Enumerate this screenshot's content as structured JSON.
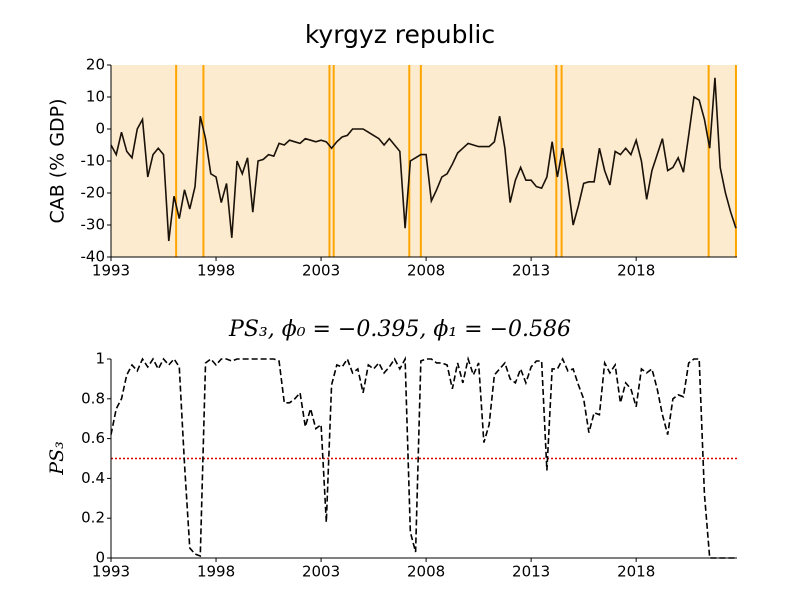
{
  "chart_data": [
    {
      "type": "line",
      "title": "kyrgyz republic",
      "y_label": "CAB (% GDP)",
      "color": "#1a1208",
      "background": "#fdebd0",
      "highlight_color": "#ffa500",
      "highlight_x": [
        1996.1,
        1997.4,
        2003.4,
        2003.6,
        2007.2,
        2007.75,
        2014.2,
        2014.45,
        2021.45,
        2022.75
      ],
      "xlim": [
        1993,
        2022.8
      ],
      "xticks": [
        1993,
        1998,
        2003,
        2008,
        2013,
        2018
      ],
      "ylim": [
        -40,
        20
      ],
      "yticks": [
        -40,
        -30,
        -20,
        -10,
        0,
        10,
        20
      ],
      "x": [
        1993,
        1993.25,
        1993.5,
        1993.75,
        1994,
        1994.25,
        1994.5,
        1994.75,
        1995,
        1995.25,
        1995.5,
        1995.75,
        1996,
        1996.25,
        1996.5,
        1996.75,
        1997,
        1997.25,
        1997.5,
        1997.75,
        1998,
        1998.25,
        1998.5,
        1998.75,
        1999,
        1999.25,
        1999.5,
        1999.75,
        2000,
        2000.25,
        2000.5,
        2000.75,
        2001,
        2001.25,
        2001.5,
        2001.75,
        2002,
        2002.25,
        2002.5,
        2002.75,
        2003,
        2003.25,
        2003.5,
        2003.75,
        2004,
        2004.25,
        2004.5,
        2004.75,
        2005,
        2005.25,
        2005.5,
        2005.75,
        2006,
        2006.25,
        2006.5,
        2006.75,
        2007,
        2007.25,
        2007.5,
        2007.75,
        2008,
        2008.25,
        2008.5,
        2008.75,
        2009,
        2009.25,
        2009.5,
        2009.75,
        2010,
        2010.25,
        2010.5,
        2010.75,
        2011,
        2011.25,
        2011.5,
        2011.75,
        2012,
        2012.25,
        2012.5,
        2012.75,
        2013,
        2013.25,
        2013.5,
        2013.75,
        2014,
        2014.25,
        2014.5,
        2014.75,
        2015,
        2015.25,
        2015.5,
        2015.75,
        2016,
        2016.25,
        2016.5,
        2016.75,
        2017,
        2017.25,
        2017.5,
        2017.75,
        2018,
        2018.25,
        2018.5,
        2018.75,
        2019,
        2019.25,
        2019.5,
        2019.75,
        2020,
        2020.25,
        2020.5,
        2020.75,
        2021,
        2021.25,
        2021.5,
        2021.75,
        2022,
        2022.25,
        2022.5,
        2022.75
      ],
      "values": [
        -5,
        -8,
        -1,
        -7,
        -9,
        0,
        3,
        -15,
        -8,
        -6,
        -8,
        -35,
        -21,
        -28,
        -19,
        -25,
        -18,
        4,
        -3,
        -14,
        -15,
        -23,
        -17,
        -34,
        -10,
        -14,
        -9,
        -26,
        -10,
        -9.5,
        -8,
        -8.5,
        -4.5,
        -5,
        -3.5,
        -4,
        -4.5,
        -3,
        -3.5,
        -4,
        -3.5,
        -4,
        -6,
        -4,
        -2.5,
        -2,
        0,
        0,
        0,
        -1,
        -2,
        -3,
        -5,
        -3,
        -5,
        -7,
        -31,
        -10,
        -9,
        -8,
        -8,
        -22.5,
        -19,
        -15,
        -14,
        -11,
        -7.5,
        -6,
        -4.5,
        -5,
        -5.5,
        -5.5,
        -5.5,
        -4,
        4,
        -6,
        -23,
        -16,
        -12,
        -16,
        -16,
        -18,
        -18.5,
        -15,
        -4,
        -15,
        -6,
        -17,
        -30,
        -24,
        -17,
        -16.5,
        -16.5,
        -6,
        -13,
        -17.5,
        -7,
        -8,
        -6,
        -8,
        -3.5,
        -10,
        -22,
        -13,
        -8,
        -3,
        -13,
        -12,
        -9,
        -13.5,
        -2,
        10,
        9,
        3,
        -6,
        16,
        -12,
        -20,
        -26,
        -31
      ]
    },
    {
      "type": "line",
      "title": "PS₃, ϕ₀ = −0.395, ϕ₁ = −0.586",
      "y_label": "PS₃",
      "color": "#000000",
      "dashed": true,
      "hline": {
        "value": 0.5,
        "color": "#dd0000"
      },
      "xlim": [
        1993,
        2022.8
      ],
      "xticks": [
        1993,
        1998,
        2003,
        2008,
        2013,
        2018
      ],
      "ylim": [
        0,
        1
      ],
      "yticks": [
        0,
        0.2,
        0.4,
        0.6,
        0.8,
        1
      ],
      "x": [
        1993,
        1993.25,
        1993.5,
        1993.75,
        1994,
        1994.25,
        1994.5,
        1994.75,
        1995,
        1995.25,
        1995.5,
        1995.75,
        1996,
        1996.25,
        1996.5,
        1996.75,
        1997,
        1997.25,
        1997.5,
        1997.75,
        1998,
        1998.25,
        1998.5,
        1998.75,
        1999,
        1999.25,
        1999.5,
        1999.75,
        2000,
        2000.25,
        2000.5,
        2000.75,
        2001,
        2001.25,
        2001.5,
        2001.75,
        2002,
        2002.25,
        2002.5,
        2002.75,
        2003,
        2003.25,
        2003.5,
        2003.75,
        2004,
        2004.25,
        2004.5,
        2004.75,
        2005,
        2005.25,
        2005.5,
        2005.75,
        2006,
        2006.25,
        2006.5,
        2006.75,
        2007,
        2007.25,
        2007.5,
        2007.75,
        2008,
        2008.25,
        2008.5,
        2008.75,
        2009,
        2009.25,
        2009.5,
        2009.75,
        2010,
        2010.25,
        2010.5,
        2010.75,
        2011,
        2011.25,
        2011.5,
        2011.75,
        2012,
        2012.25,
        2012.5,
        2012.75,
        2013,
        2013.25,
        2013.5,
        2013.75,
        2014,
        2014.25,
        2014.5,
        2014.75,
        2015,
        2015.25,
        2015.5,
        2015.75,
        2016,
        2016.25,
        2016.5,
        2016.75,
        2017,
        2017.25,
        2017.5,
        2017.75,
        2018,
        2018.25,
        2018.5,
        2018.75,
        2019,
        2019.25,
        2019.5,
        2019.75,
        2020,
        2020.25,
        2020.5,
        2020.75,
        2021,
        2021.25,
        2021.5,
        2021.75,
        2022,
        2022.25,
        2022.5,
        2022.75
      ],
      "values": [
        0.62,
        0.75,
        0.8,
        0.92,
        0.97,
        0.94,
        1,
        0.96,
        1,
        0.95,
        1,
        0.97,
        1,
        0.96,
        0.47,
        0.05,
        0.02,
        0.01,
        0.98,
        1,
        0.97,
        1,
        1,
        0.99,
        1,
        1,
        1,
        1,
        1,
        1,
        1,
        1,
        0.99,
        0.78,
        0.78,
        0.8,
        0.83,
        0.66,
        0.75,
        0.65,
        0.67,
        0.18,
        0.87,
        0.97,
        0.96,
        1,
        0.93,
        0.95,
        0.83,
        0.97,
        0.95,
        0.98,
        0.93,
        0.96,
        1,
        0.95,
        1,
        0.13,
        0.03,
        0.99,
        1,
        1,
        0.98,
        0.98,
        0.97,
        0.85,
        0.98,
        0.88,
        1,
        0.92,
        0.98,
        0.58,
        0.67,
        0.92,
        0.95,
        0.98,
        0.9,
        0.88,
        0.95,
        0.88,
        0.96,
        0.99,
        0.99,
        0.44,
        0.95,
        0.95,
        1,
        0.94,
        0.95,
        0.87,
        0.8,
        0.63,
        0.73,
        0.72,
        0.98,
        0.93,
        0.97,
        0.78,
        0.88,
        0.85,
        0.76,
        0.95,
        0.93,
        0.95,
        0.85,
        0.72,
        0.62,
        0.8,
        0.82,
        0.81,
        0.98,
        1,
        1,
        0.32,
        0,
        0,
        0,
        0,
        0,
        0
      ]
    }
  ]
}
